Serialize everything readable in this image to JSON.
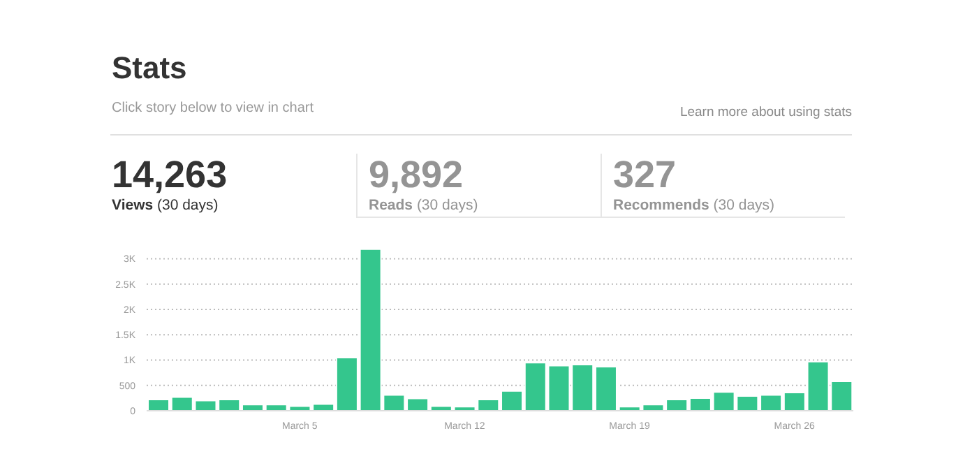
{
  "chart_data": {
    "type": "bar",
    "title": "Stats",
    "subtitle": "Click story below to view in chart",
    "annotations": [
      "Learn more about using stats",
      "14,263",
      "Views",
      "(30 days)",
      "9,892",
      "Reads",
      "(30 days)",
      "327",
      "Recommends",
      "(30 days)"
    ],
    "categories": [
      null,
      null,
      null,
      null,
      null,
      null,
      "March 5",
      null,
      null,
      null,
      null,
      null,
      null,
      "March 12",
      null,
      null,
      null,
      null,
      null,
      null,
      "March 19",
      null,
      null,
      null,
      null,
      null,
      null,
      "March 26",
      null,
      null
    ],
    "values": [
      220,
      270,
      200,
      220,
      120,
      120,
      90,
      130,
      1050,
      3190,
      310,
      240,
      90,
      80,
      220,
      390,
      950,
      890,
      910,
      870,
      80,
      120,
      220,
      250,
      370,
      290,
      310,
      360,
      970,
      580
    ],
    "color": "#34c68d",
    "ylim": [
      0,
      3200
    ],
    "yticks": [
      0,
      500,
      {
        "value": 1000,
        "label": "1K"
      },
      {
        "value": 1500,
        "label": "1.5K"
      },
      {
        "value": 2000,
        "label": "2K"
      },
      {
        "value": 2500,
        "label": "2.5K"
      },
      {
        "value": 3000,
        "label": "3K"
      }
    ],
    "grid": "y"
  }
}
